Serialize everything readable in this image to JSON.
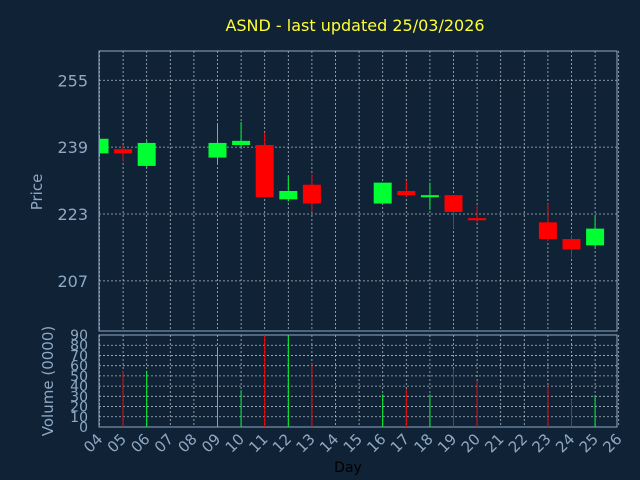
{
  "colors": {
    "background": "#0f2236",
    "up": "#00ff33",
    "down": "#ff0000",
    "title": "#ffff33",
    "axis": "#8fa9c4",
    "grid": "#c8d2dc"
  },
  "chart_data": {
    "type": "candlestick",
    "title": "ASND - last updated 25/03/2026",
    "xlabel": "Day",
    "ylabel_price": "Price",
    "ylabel_volume": "Volume (0000)",
    "price_ylim": [
      195,
      262
    ],
    "price_ticks": [
      "207",
      "223",
      "239",
      "255"
    ],
    "volume_ylim": [
      0,
      90
    ],
    "volume_ticks": [
      "0",
      "10",
      "20",
      "30",
      "40",
      "50",
      "60",
      "70",
      "80",
      "90"
    ],
    "x_ticks": [
      "04",
      "05",
      "06",
      "07",
      "08",
      "09",
      "10",
      "11",
      "12",
      "13",
      "14",
      "15",
      "16",
      "17",
      "18",
      "19",
      "20",
      "21",
      "22",
      "23",
      "24",
      "25",
      "26"
    ],
    "grid": true,
    "candles": [
      {
        "day": "04",
        "open": 237.5,
        "close": 241.0,
        "high": 241.5,
        "low": 237.0,
        "volume": 0
      },
      {
        "day": "05",
        "open": 238.5,
        "close": 237.5,
        "high": 239.5,
        "low": 235.5,
        "volume": 55
      },
      {
        "day": "06",
        "open": 234.5,
        "close": 240.0,
        "high": 240.5,
        "low": 234.0,
        "volume": 55
      },
      {
        "day": "09",
        "open": 236.5,
        "close": 240.0,
        "high": 244.5,
        "low": 235.0,
        "volume": 78
      },
      {
        "day": "10",
        "open": 239.5,
        "close": 240.5,
        "high": 245.0,
        "low": 239.0,
        "volume": 36
      },
      {
        "day": "11",
        "open": 239.5,
        "close": 227.0,
        "high": 242.5,
        "low": 227.0,
        "volume": 90
      },
      {
        "day": "12",
        "open": 226.5,
        "close": 228.5,
        "high": 232.0,
        "low": 226.0,
        "volume": 90
      },
      {
        "day": "13",
        "open": 230.0,
        "close": 225.5,
        "high": 232.5,
        "low": 223.5,
        "volume": 62
      },
      {
        "day": "16",
        "open": 225.5,
        "close": 230.5,
        "high": 230.5,
        "low": 225.5,
        "volume": 32
      },
      {
        "day": "17",
        "open": 228.5,
        "close": 227.5,
        "high": 231.0,
        "low": 227.0,
        "volume": 37
      },
      {
        "day": "18",
        "open": 227.0,
        "close": 227.5,
        "high": 230.5,
        "low": 224.0,
        "volume": 32
      },
      {
        "day": "19",
        "open": 227.5,
        "close": 223.5,
        "high": 227.5,
        "low": 219.5,
        "volume": 57
      },
      {
        "day": "20",
        "open": 222.0,
        "close": 221.5,
        "high": 225.0,
        "low": 221.0,
        "volume": 45
      },
      {
        "day": "23",
        "open": 221.0,
        "close": 217.0,
        "high": 225.5,
        "low": 216.5,
        "volume": 40
      },
      {
        "day": "24",
        "open": 217.0,
        "close": 214.5,
        "high": 218.0,
        "low": 212.5,
        "volume": 27
      },
      {
        "day": "25",
        "open": 215.5,
        "close": 219.5,
        "high": 222.5,
        "low": 215.0,
        "volume": 31
      }
    ]
  }
}
